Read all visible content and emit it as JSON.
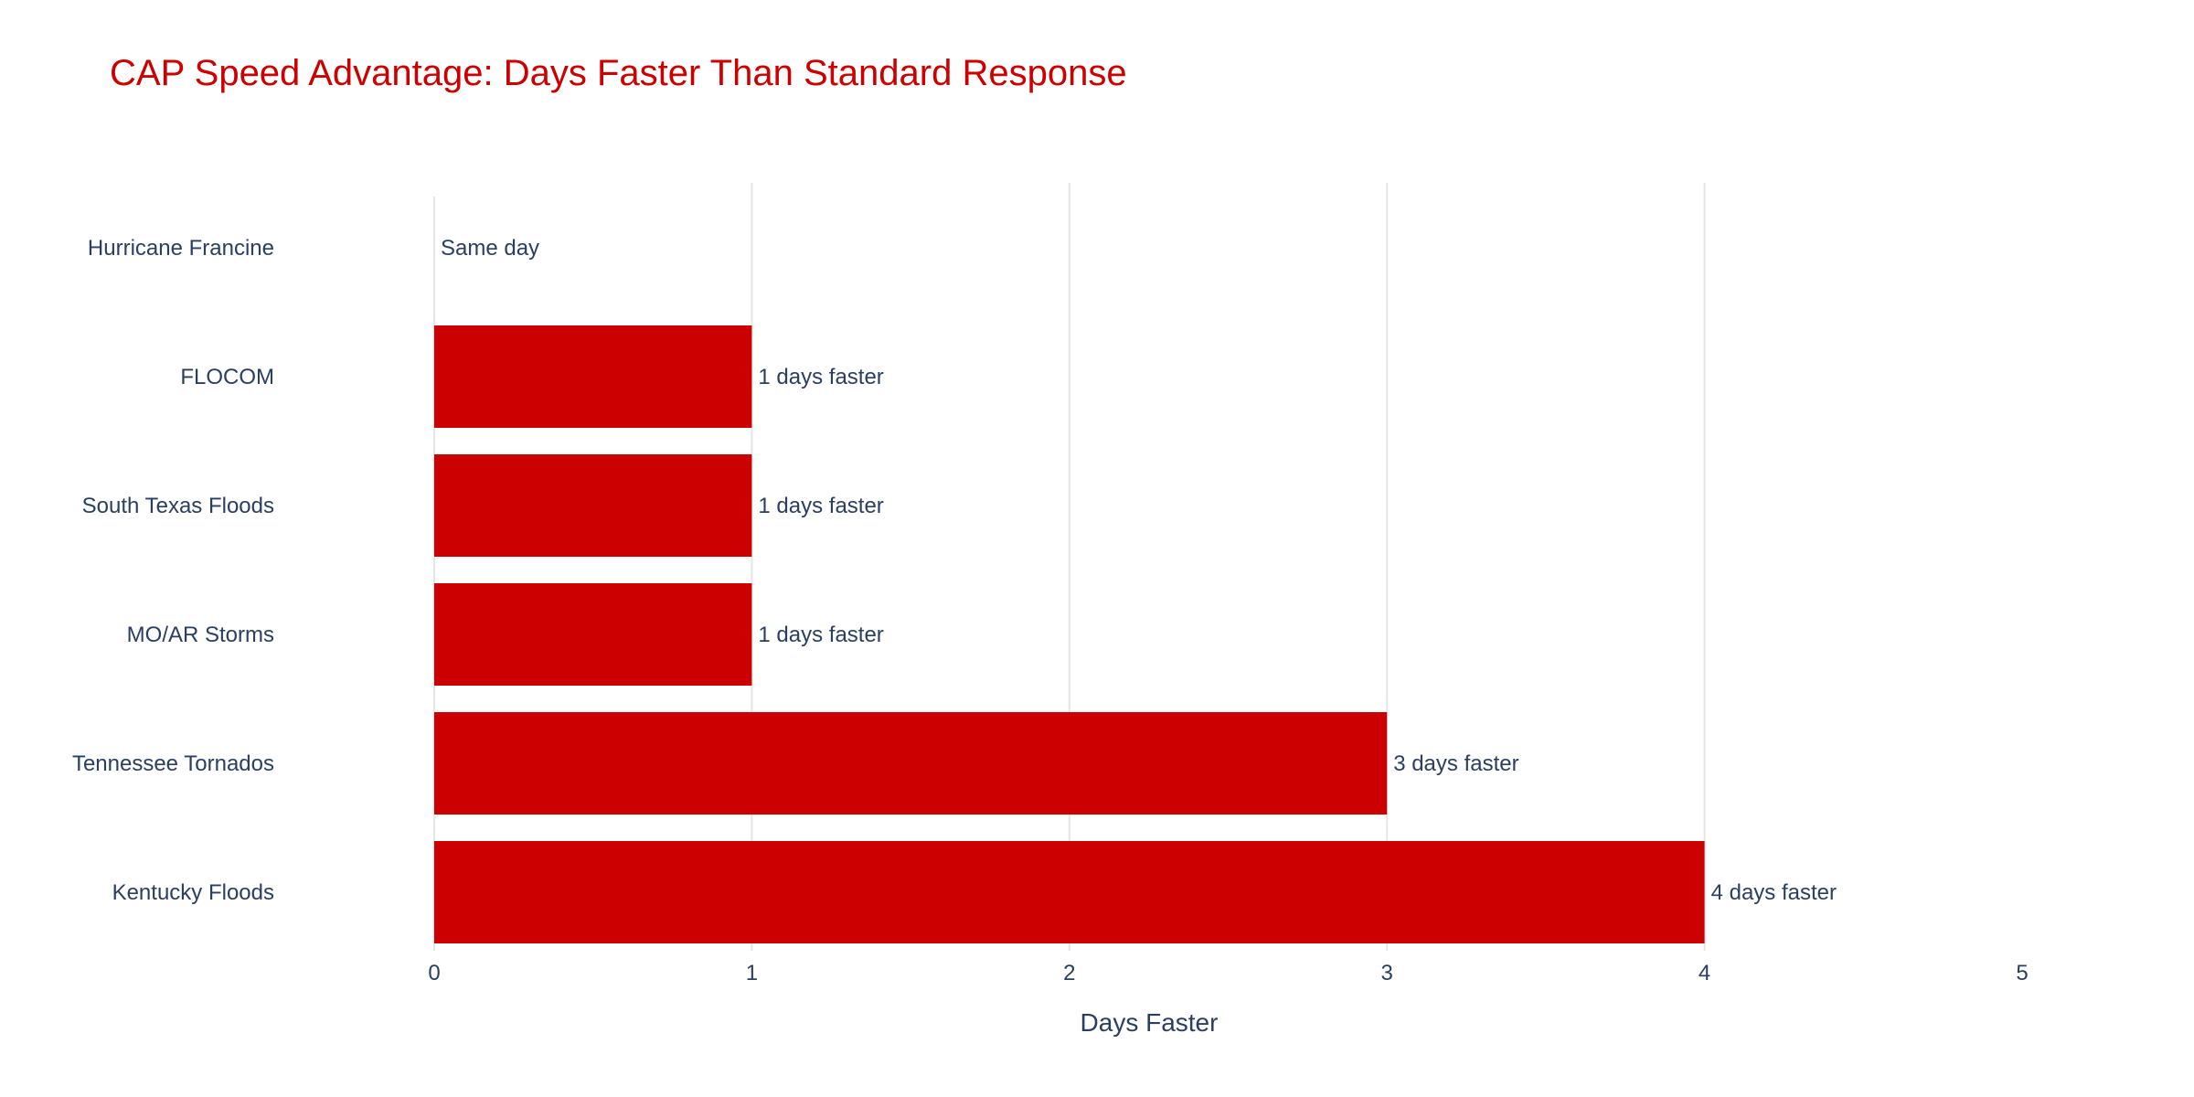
{
  "title": "CAP Speed Advantage: Days Faster Than Standard Response",
  "chart_data": {
    "type": "bar",
    "orientation": "horizontal",
    "title": "CAP Speed Advantage: Days Faster Than Standard Response",
    "xlabel": "Days Faster",
    "ylabel": "",
    "xlim": [
      0,
      5
    ],
    "xticks": [
      "0",
      "1",
      "2",
      "3",
      "4",
      "5"
    ],
    "categories": [
      "Hurricane Francine",
      "FLOCOM",
      "South Texas Floods",
      "MO/AR Storms",
      "Tennessee Tornados",
      "Kentucky Floods"
    ],
    "values": [
      0,
      1,
      1,
      1,
      3,
      4
    ],
    "data_labels": [
      "Same day",
      "1 days faster",
      "1 days faster",
      "1 days faster",
      "3 days faster",
      "4 days faster"
    ],
    "grid": true,
    "legend": "none",
    "colors": {
      "bar": "#cc0000",
      "title": "#cc0000",
      "text": "#2a3f5f",
      "grid": "#e5e5e5"
    }
  }
}
